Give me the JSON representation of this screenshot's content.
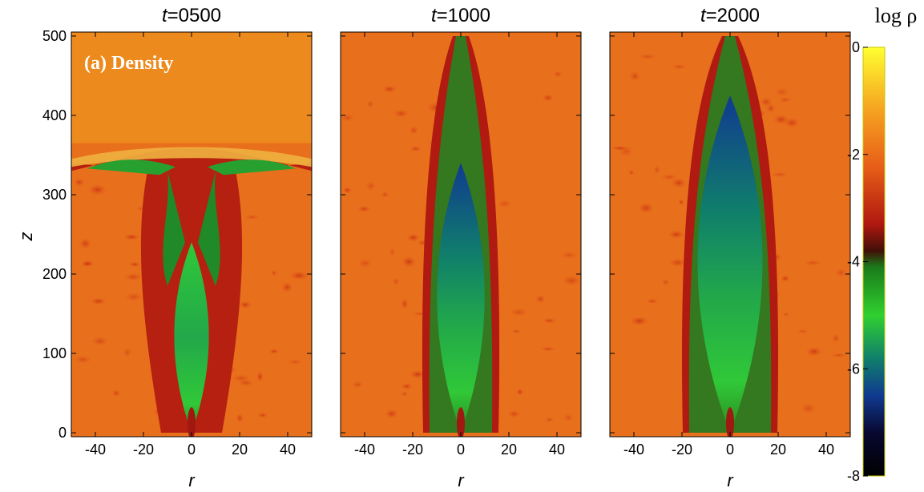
{
  "chart_data": {
    "type": "heatmap",
    "panels": [
      {
        "time_var": "t",
        "time_value": "=0500",
        "annotation": "(a) Density",
        "jet_tip_z": 240,
        "head_z": 365,
        "cavity_halfwidth": 8
      },
      {
        "time_var": "t",
        "time_value": "=1000",
        "annotation": "",
        "jet_tip_z": 340,
        "head_z": 500,
        "cavity_halfwidth": 11
      },
      {
        "time_var": "t",
        "time_value": "=2000",
        "annotation": "",
        "jet_tip_z": 425,
        "head_z": 500,
        "cavity_halfwidth": 15
      }
    ],
    "xlabel": "r",
    "ylabel": "z",
    "xlim": [
      -50,
      50
    ],
    "ylim": [
      -5,
      505
    ],
    "x_ticks": [
      "-40",
      "-20",
      "0",
      "20",
      "40"
    ],
    "x_tick_values": [
      -40,
      -20,
      0,
      20,
      40
    ],
    "y_ticks": [
      "0",
      "100",
      "200",
      "300",
      "400",
      "500"
    ],
    "y_tick_values": [
      0,
      100,
      200,
      300,
      400,
      500
    ],
    "colorbar": {
      "label": "log ρ",
      "range": [
        -8,
        0
      ],
      "ticks": [
        "0",
        "-2",
        "-4",
        "-6",
        "-8"
      ],
      "tick_values": [
        0,
        -2,
        -4,
        -6,
        -8
      ],
      "colormap": [
        {
          "v": 0,
          "c": "#ffff30"
        },
        {
          "v": -1.2,
          "c": "#f5a020"
        },
        {
          "v": -2.2,
          "c": "#e86018"
        },
        {
          "v": -3.3,
          "c": "#b01810"
        },
        {
          "v": -3.8,
          "c": "#401008"
        },
        {
          "v": -4.1,
          "c": "#1a7a1a"
        },
        {
          "v": -5.0,
          "c": "#30d030"
        },
        {
          "v": -5.8,
          "c": "#10806a"
        },
        {
          "v": -6.5,
          "c": "#103a90"
        },
        {
          "v": -7.2,
          "c": "#080830"
        },
        {
          "v": -8,
          "c": "#000000"
        }
      ]
    }
  }
}
